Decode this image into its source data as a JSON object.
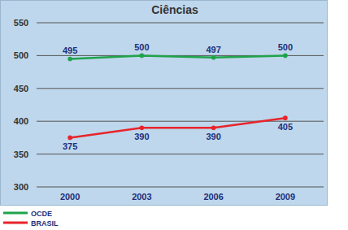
{
  "chart_data": {
    "type": "line",
    "title": "Ciências",
    "categories": [
      "2000",
      "2003",
      "2006",
      "2009"
    ],
    "series": [
      {
        "name": "OCDE",
        "color": "#1fa34a",
        "values": [
          495,
          500,
          497,
          500
        ]
      },
      {
        "name": "BRASIL",
        "color": "#e8242b",
        "values": [
          375,
          390,
          390,
          405
        ]
      }
    ],
    "ylim": [
      300,
      550
    ],
    "yticks": [
      300,
      350,
      400,
      450,
      500,
      550
    ],
    "grid": true,
    "legend": "bottom-left",
    "data_labels": true,
    "marker": "circle"
  }
}
